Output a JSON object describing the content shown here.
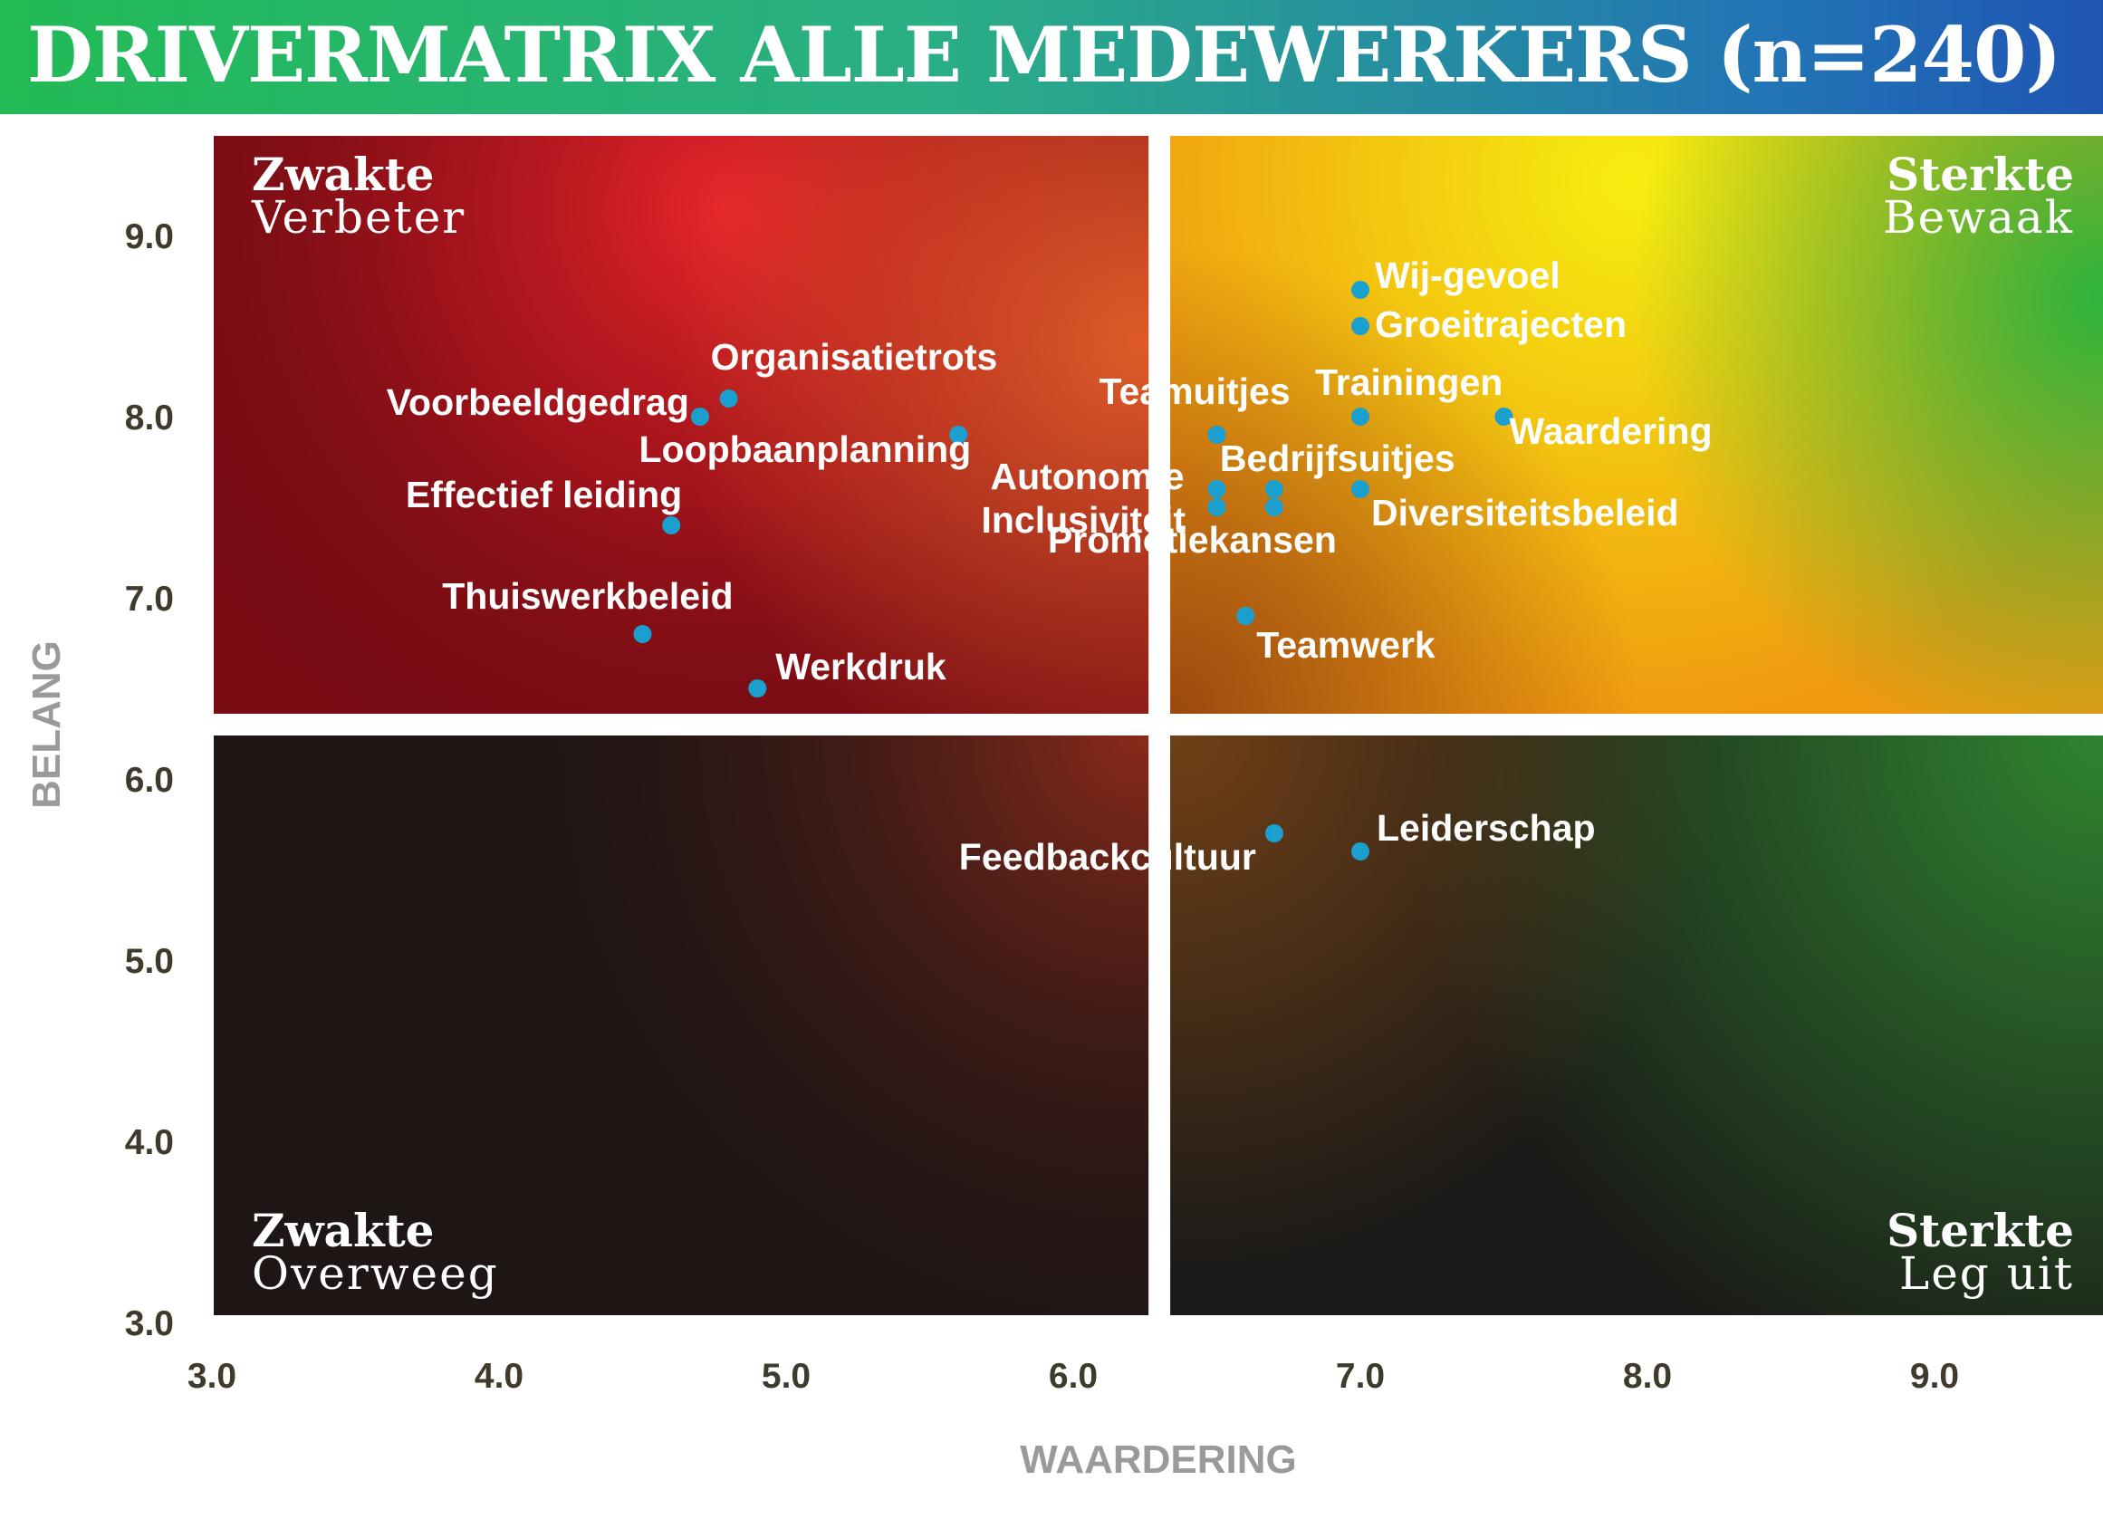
{
  "title": "DRIVERMATRIX ALLE MEDEWERKERS (n=240)",
  "colors": {
    "title_gradient": [
      "#22bb55",
      "#2aae86",
      "#2273b6",
      "#1f55b2"
    ],
    "point": "#1a9fcf",
    "weak_high": [
      "#e6302a",
      "#7a0c14"
    ],
    "strong_high": [
      "#f5ea10",
      "#f09a10",
      "#2fb43c"
    ],
    "weak_low": [
      "#7e2418",
      "#1e1515"
    ],
    "strong_low": [
      "#2e7a2e",
      "#1b1a18"
    ]
  },
  "quadrants": {
    "top_left": {
      "head": "Zwakte",
      "sub": "Verbeter"
    },
    "top_right": {
      "head": "Sterkte",
      "sub": "Bewaak"
    },
    "bottom_left": {
      "head": "Zwakte",
      "sub": "Overweeg"
    },
    "bottom_right": {
      "head": "Sterkte",
      "sub": "Leg uit"
    }
  },
  "chart_data": {
    "type": "scatter",
    "title": "DRIVERMATRIX ALLE MEDEWERKERS (n=240)",
    "xlabel": "WAARDERING",
    "ylabel": "BELANG",
    "xlim": [
      3.0,
      9.6
    ],
    "ylim": [
      3.0,
      9.6
    ],
    "x_ticks": [
      "3.0",
      "4.0",
      "5.0",
      "6.0",
      "7.0",
      "8.0",
      "9.0"
    ],
    "y_ticks": [
      "3.0",
      "4.0",
      "5.0",
      "6.0",
      "7.0",
      "8.0",
      "9.0"
    ],
    "dividers": {
      "x": 6.3,
      "y": 6.3
    },
    "grid": false,
    "legend": "none",
    "points": [
      {
        "label": "Wij-gevoel",
        "x": 7.0,
        "y": 8.7
      },
      {
        "label": "Groeitrajecten",
        "x": 7.0,
        "y": 8.5
      },
      {
        "label": "Organisatietrots",
        "x": 4.8,
        "y": 8.1
      },
      {
        "label": "Voorbeeldgedrag",
        "x": 4.7,
        "y": 8.0
      },
      {
        "label": "Trainingen",
        "x": 7.0,
        "y": 8.0
      },
      {
        "label": "Waardering",
        "x": 7.5,
        "y": 8.0
      },
      {
        "label": "Teamuitjes",
        "x": 6.5,
        "y": 7.9
      },
      {
        "label": "Loopbaanplanning",
        "x": 5.6,
        "y": 7.9
      },
      {
        "label": "Autonomie",
        "x": 6.5,
        "y": 7.6
      },
      {
        "label": "Bedrijfsuitjes",
        "x": 6.7,
        "y": 7.6
      },
      {
        "label": "Diversiteitsbeleid",
        "x": 7.0,
        "y": 7.6
      },
      {
        "label": "Inclusiviteit",
        "x": 6.5,
        "y": 7.5
      },
      {
        "label": "Promotiekansen",
        "x": 6.7,
        "y": 7.5
      },
      {
        "label": "Effectief leiding",
        "x": 4.6,
        "y": 7.4
      },
      {
        "label": "Teamwerk",
        "x": 6.6,
        "y": 6.9
      },
      {
        "label": "Thuiswerkbeleid",
        "x": 4.5,
        "y": 6.8
      },
      {
        "label": "Werkdruk",
        "x": 4.9,
        "y": 6.5
      },
      {
        "label": "Feedbackcultuur",
        "x": 6.7,
        "y": 5.7
      },
      {
        "label": "Leiderschap",
        "x": 7.0,
        "y": 5.6
      }
    ]
  }
}
